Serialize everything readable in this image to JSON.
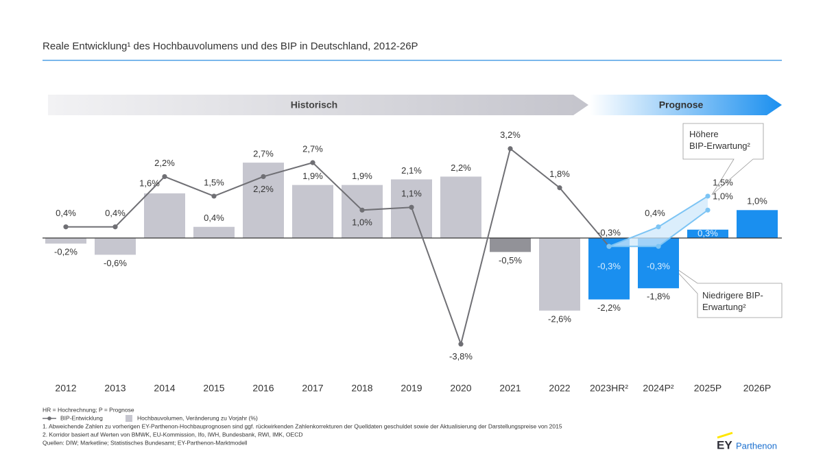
{
  "chart_data": {
    "type": "bar",
    "title": "Reale Entwicklung¹ des Hochbauvolumens und des BIP in Deutschland, 2012-26P",
    "phases": [
      "Historisch",
      "Prognose"
    ],
    "categories": [
      "2012",
      "2013",
      "2014",
      "2015",
      "2016",
      "2017",
      "2018",
      "2019",
      "2020",
      "2021",
      "2022",
      "2023HR²",
      "2024P²",
      "2025P",
      "2026P"
    ],
    "ylim": [
      -4,
      3.5
    ],
    "series": [
      {
        "name": "Hochbauvolumen, Veränderung zu Vorjahr (%)",
        "type": "bar",
        "color": "#c6c6cf",
        "colors": [
          "#c6c6cf",
          "#c6c6cf",
          "#c6c6cf",
          "#c6c6cf",
          "#c6c6cf",
          "#c6c6cf",
          "#c6c6cf",
          "#c6c6cf",
          "#c6c6cf",
          "#929298",
          "#c6c6cf",
          "#1a8fef",
          "#1a8fef",
          "#1a8fef",
          "#1a8fef"
        ],
        "values": [
          -0.2,
          -0.6,
          1.6,
          0.4,
          2.7,
          1.9,
          1.9,
          2.1,
          2.2,
          -0.5,
          -2.6,
          -2.2,
          -1.8,
          0.3,
          1.0
        ],
        "value_labels": [
          "-0,2%",
          "-0,6%",
          "1,6%",
          "0,4%",
          "2,7%",
          "1,9%",
          "1,9%",
          "2,1%",
          "2,2%",
          "-0,5%",
          "-2,6%",
          "-2,2%",
          "-1,8%",
          "0,3%",
          "1,0%"
        ]
      },
      {
        "name": "BIP-Entwicklung",
        "type": "line",
        "color": "#6f6f74",
        "values": [
          0.4,
          0.4,
          2.2,
          1.5,
          2.2,
          2.7,
          1.0,
          1.1,
          -3.8,
          3.2,
          1.8,
          -0.3,
          null,
          null,
          null
        ],
        "value_labels": [
          "0,4%",
          "0,4%",
          "2,2%",
          "1,5%",
          "2,2%",
          "2,7%",
          "1,0%",
          "1,1%",
          "-3,8%",
          "3,2%",
          "1,8%",
          "-0,3%",
          null,
          null,
          null
        ]
      },
      {
        "name": "Höhere BIP-Erwartung²",
        "type": "line",
        "color": "#7cc4f4",
        "values": [
          null,
          null,
          null,
          null,
          null,
          null,
          null,
          null,
          null,
          null,
          null,
          -0.3,
          0.4,
          1.5,
          null
        ],
        "value_labels": [
          null,
          null,
          null,
          null,
          null,
          null,
          null,
          null,
          null,
          null,
          null,
          null,
          "0,4%",
          "1,5%",
          null
        ]
      },
      {
        "name": "Niedrigere BIP-Erwartung²",
        "type": "line",
        "color": "#7cc4f4",
        "values": [
          null,
          null,
          null,
          null,
          null,
          null,
          null,
          null,
          null,
          null,
          null,
          -0.3,
          -0.3,
          1.0,
          null
        ],
        "value_labels": [
          null,
          null,
          null,
          null,
          null,
          null,
          null,
          null,
          null,
          null,
          null,
          "-0,3%",
          "-0,3%",
          "1,0%",
          null
        ]
      }
    ],
    "footnotes": [
      "HR = Hochrechnung; P = Prognose",
      "1. Abweichende Zahlen zu vorherigen EY-Parthenon-Hochbauprognosen sind ggf. rückwirkenden Zahlenkorrekturen der Quelldaten geschuldet sowie der Aktualisierung der Darstellungspreise von 2015",
      "2. Korridor basiert auf Werten von BMWK, EU-Kommission, Ifo, IWH, Bundesbank, RWI, IMK, OECD",
      "Quellen: DIW; Marketline; Statistisches Bundesamt; EY-Parthenon-Marktmodell"
    ],
    "logo": {
      "brand": "EY",
      "name": "Parthenon"
    }
  }
}
